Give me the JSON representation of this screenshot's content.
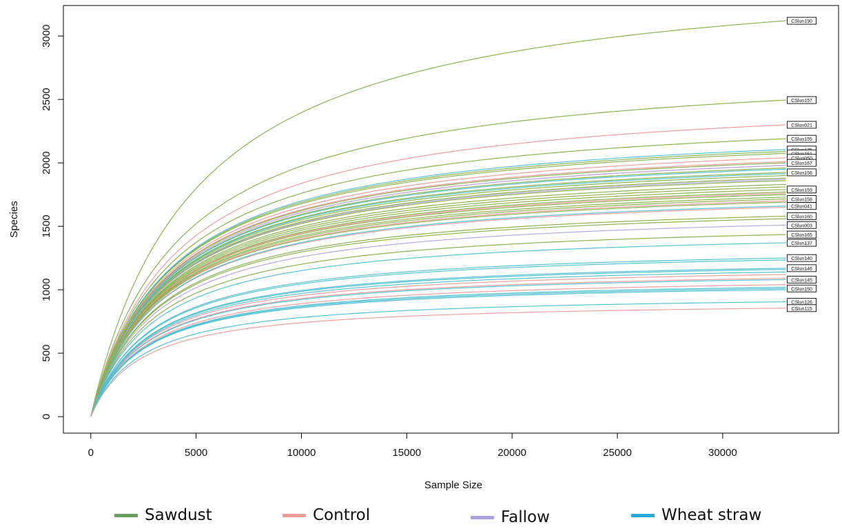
{
  "chart_data": {
    "type": "line",
    "xlabel": "Sample Size",
    "ylabel": "Species",
    "xlim": [
      -1300,
      35500
    ],
    "ylim": [
      -130,
      3240
    ],
    "x_ticks": [
      0,
      5000,
      10000,
      15000,
      20000,
      25000,
      30000
    ],
    "y_ticks": [
      0,
      500,
      1000,
      1500,
      2000,
      2500,
      3000
    ],
    "x_end": 33000,
    "legend_position": "bottom",
    "groups": [
      {
        "name": "Sawdust",
        "color": "#86b04a",
        "legend_color": "#6a9e5c"
      },
      {
        "name": "Control",
        "color": "#ee9a9a",
        "legend_color": "#ee9a9a"
      },
      {
        "name": "Fallow",
        "color": "#b5a4e0",
        "legend_color": "#a9a2dc"
      },
      {
        "name": "Wheat straw",
        "color": "#4ec0d0",
        "legend_color": "#2aa8d8"
      }
    ],
    "series": [
      {
        "name": "CSlun190",
        "group": "Sawdust",
        "asymptote": 3120
      },
      {
        "name": "CSlun157",
        "group": "Sawdust",
        "asymptote": 2495
      },
      {
        "name": "CSlun021",
        "group": "Control",
        "asymptote": 2300
      },
      {
        "name": "CSlun155",
        "group": "Sawdust",
        "asymptote": 2190
      },
      {
        "name": "CSlun175",
        "group": "Wheat straw",
        "asymptote": 2105
      },
      {
        "name": "CSlun151",
        "group": "Sawdust",
        "asymptote": 2075
      },
      {
        "name": "CSlun050",
        "group": "Control",
        "asymptote": 2040
      },
      {
        "name": "CSlun167",
        "group": "Sawdust",
        "asymptote": 2000
      },
      {
        "name": "CSlun156",
        "group": "Sawdust",
        "asymptote": 1925
      },
      {
        "name": "CSlun159",
        "group": "Sawdust",
        "asymptote": 1790
      },
      {
        "name": "CSlun158",
        "group": "Sawdust",
        "asymptote": 1715
      },
      {
        "name": "CSlun041",
        "group": "Wheat straw",
        "asymptote": 1660
      },
      {
        "name": "CSlun160",
        "group": "Sawdust",
        "asymptote": 1580
      },
      {
        "name": "CSlun003",
        "group": "Fallow",
        "asymptote": 1510
      },
      {
        "name": "CSlun165",
        "group": "Sawdust",
        "asymptote": 1435
      },
      {
        "name": "CSlun137",
        "group": "Wheat straw",
        "asymptote": 1370
      },
      {
        "name": "CSlun140",
        "group": "Wheat straw",
        "asymptote": 1250
      },
      {
        "name": "CSlun146",
        "group": "Wheat straw",
        "asymptote": 1170
      },
      {
        "name": "CSlun145",
        "group": "Wheat straw",
        "asymptote": 1080
      },
      {
        "name": "CSlun150",
        "group": "Wheat straw",
        "asymptote": 1010
      },
      {
        "name": "CSlun126",
        "group": "Wheat straw",
        "asymptote": 905
      },
      {
        "name": "CSlun115",
        "group": "Control",
        "asymptote": 855
      }
    ],
    "unlabeled_series": [
      {
        "group": "Sawdust",
        "asymptote": 2090
      },
      {
        "group": "Sawdust",
        "asymptote": 1960
      },
      {
        "group": "Sawdust",
        "asymptote": 1900
      },
      {
        "group": "Sawdust",
        "asymptote": 1880
      },
      {
        "group": "Sawdust",
        "asymptote": 1860
      },
      {
        "group": "Sawdust",
        "asymptote": 1830
      },
      {
        "group": "Sawdust",
        "asymptote": 1810
      },
      {
        "group": "Sawdust",
        "asymptote": 1770
      },
      {
        "group": "Sawdust",
        "asymptote": 1750
      },
      {
        "group": "Sawdust",
        "asymptote": 1730
      },
      {
        "group": "Sawdust",
        "asymptote": 1690
      },
      {
        "group": "Sawdust",
        "asymptote": 1560
      },
      {
        "group": "Control",
        "asymptote": 2010
      },
      {
        "group": "Control",
        "asymptote": 1980
      },
      {
        "group": "Control",
        "asymptote": 1760
      },
      {
        "group": "Control",
        "asymptote": 1700
      },
      {
        "group": "Control",
        "asymptote": 1650
      },
      {
        "group": "Control",
        "asymptote": 1120
      },
      {
        "group": "Control",
        "asymptote": 1090
      },
      {
        "group": "Control",
        "asymptote": 1040
      },
      {
        "group": "Fallow",
        "asymptote": 1980
      },
      {
        "group": "Fallow",
        "asymptote": 1870
      },
      {
        "group": "Wheat straw",
        "asymptote": 1950
      },
      {
        "group": "Wheat straw",
        "asymptote": 1915
      },
      {
        "group": "Wheat straw",
        "asymptote": 1235
      },
      {
        "group": "Wheat straw",
        "asymptote": 1160
      },
      {
        "group": "Wheat straw",
        "asymptote": 1140
      },
      {
        "group": "Wheat straw",
        "asymptote": 1020
      },
      {
        "group": "Wheat straw",
        "asymptote": 1000
      }
    ]
  },
  "legend": [
    {
      "label": "Sawdust",
      "color": "#6a9e5c"
    },
    {
      "label": "Control",
      "color": "#ee9a9a"
    },
    {
      "label": "Fallow",
      "color": "#a9a2dc"
    },
    {
      "label": "Wheat straw",
      "color": "#2aa8d8"
    }
  ]
}
